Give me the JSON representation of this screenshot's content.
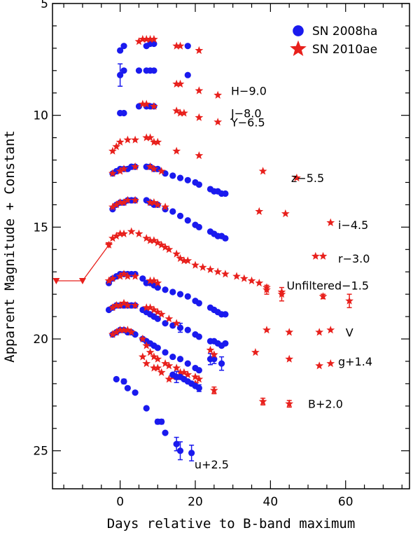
{
  "chart_data": {
    "type": "scatter",
    "title": "",
    "xlabel": "Days relative to B-band maximum",
    "ylabel": "Apparent Magnitude + Constant",
    "xlim": [
      -18,
      77
    ],
    "ylim": [
      26.7,
      5
    ],
    "y_inverted": true,
    "x_ticks": [
      0,
      20,
      40,
      60
    ],
    "y_ticks": [
      5,
      10,
      15,
      20,
      25
    ],
    "colors": {
      "sn2008ha": "#1a1aee",
      "sn2010ae": "#e8201c"
    },
    "legend": {
      "position": "top-right",
      "entries": [
        {
          "key": "sn2008ha",
          "label": "SN 2008ha",
          "marker": "circle"
        },
        {
          "key": "sn2010ae",
          "label": "SN 2010ae",
          "marker": "star"
        }
      ]
    },
    "band_labels": [
      {
        "text": "H−9.0",
        "x": 29.5,
        "y": 8.9
      },
      {
        "text": "J−8.0",
        "x": 29.5,
        "y": 9.9
      },
      {
        "text": "Y−6.5",
        "x": 29.5,
        "y": 10.3
      },
      {
        "text": "z−5.5",
        "x": 45.5,
        "y": 12.8
      },
      {
        "text": "i−4.5",
        "x": 58.0,
        "y": 14.9
      },
      {
        "text": "r−3.0",
        "x": 58.0,
        "y": 16.4
      },
      {
        "text": "Unfiltered−1.5",
        "x": 44.3,
        "y": 17.6
      },
      {
        "text": "V",
        "x": 60.0,
        "y": 19.7
      },
      {
        "text": "g+1.4",
        "x": 58.0,
        "y": 21.0
      },
      {
        "text": "B+2.0",
        "x": 50.0,
        "y": 22.9
      },
      {
        "text": "u+2.5",
        "x": 19.8,
        "y": 25.6
      }
    ],
    "series": [
      {
        "name": "SN 2008ha H-9.0",
        "marker": "circle",
        "color": "sn2008ha",
        "x": [
          0,
          1,
          7,
          8,
          9,
          18
        ],
        "y": [
          7.1,
          6.9,
          6.9,
          6.8,
          6.8,
          6.9
        ]
      },
      {
        "name": "SN 2010ae H-9.0",
        "marker": "star",
        "color": "sn2010ae",
        "x": [
          5,
          6,
          7,
          8,
          9,
          15,
          16,
          21
        ],
        "y": [
          6.7,
          6.6,
          6.6,
          6.6,
          6.6,
          6.9,
          6.9,
          7.1
        ]
      },
      {
        "name": "SN 2008ha J-8.0",
        "marker": "circle",
        "color": "sn2008ha",
        "x": [
          0,
          1,
          5,
          7,
          8,
          9,
          18
        ],
        "y": [
          8.2,
          8.0,
          8.0,
          8.0,
          8.0,
          8.0,
          8.2
        ],
        "err": [
          0.5,
          0,
          0,
          0,
          0,
          0,
          0
        ]
      },
      {
        "name": "SN 2010ae J-8.0",
        "marker": "star",
        "color": "sn2010ae",
        "x": [
          15,
          16,
          21,
          26
        ],
        "y": [
          8.6,
          8.6,
          8.9,
          9.1
        ]
      },
      {
        "name": "SN 2008ha Y-6.5",
        "marker": "circle",
        "color": "sn2008ha",
        "x": [
          0,
          1,
          5,
          7,
          8,
          9
        ],
        "y": [
          9.9,
          9.9,
          9.6,
          9.6,
          9.6,
          9.6
        ]
      },
      {
        "name": "SN 2010ae Y-6.5",
        "marker": "star",
        "color": "sn2010ae",
        "x": [
          6,
          7,
          9,
          15,
          16,
          17,
          21,
          26
        ],
        "y": [
          9.5,
          9.5,
          9.6,
          9.8,
          9.9,
          9.9,
          10.1,
          10.3
        ]
      },
      {
        "name": "SN 2010ae z-5.5",
        "marker": "star",
        "color": "sn2010ae",
        "x": [
          -2,
          -1,
          0,
          2,
          4,
          7,
          8,
          9,
          10,
          15,
          21,
          38,
          47
        ],
        "y": [
          11.6,
          11.4,
          11.2,
          11.1,
          11.1,
          11.0,
          11.0,
          11.2,
          11.2,
          11.6,
          11.8,
          12.5,
          12.8
        ]
      },
      {
        "name": "SN 2008ha z-5.5",
        "marker": "circle",
        "color": "sn2008ha",
        "x": [
          -2,
          -1,
          0,
          1,
          2,
          3,
          4,
          7,
          8,
          9,
          10,
          12,
          14,
          16,
          18,
          20,
          21,
          24,
          25,
          26,
          27,
          28
        ],
        "y": [
          12.6,
          12.5,
          12.4,
          12.4,
          12.4,
          12.3,
          12.3,
          12.3,
          12.3,
          12.4,
          12.4,
          12.6,
          12.7,
          12.8,
          12.9,
          13.0,
          13.1,
          13.3,
          13.4,
          13.4,
          13.5,
          13.5
        ]
      },
      {
        "name": "SN 2010ae z-5.5 (B)",
        "marker": "star",
        "color": "sn2010ae",
        "x": [
          -2,
          0,
          1,
          4,
          8,
          9,
          11
        ],
        "y": [
          12.6,
          12.5,
          12.4,
          12.3,
          12.3,
          12.4,
          12.5
        ]
      },
      {
        "name": "SN 2008ha i-4.5",
        "marker": "circle",
        "color": "sn2008ha",
        "x": [
          -2,
          -1,
          0,
          1,
          2,
          3,
          4,
          7,
          8,
          9,
          10,
          12,
          14,
          16,
          18,
          20,
          21,
          24,
          25,
          26,
          27,
          28
        ],
        "y": [
          14.2,
          14.0,
          13.9,
          13.9,
          13.8,
          13.8,
          13.8,
          13.8,
          13.9,
          14.0,
          14.0,
          14.2,
          14.3,
          14.5,
          14.7,
          14.9,
          15.0,
          15.2,
          15.3,
          15.4,
          15.4,
          15.5
        ]
      },
      {
        "name": "SN 2010ae i-4.5",
        "marker": "star",
        "color": "sn2010ae",
        "x": [
          -2,
          -1,
          0,
          1,
          2,
          4,
          8,
          9,
          10,
          12,
          37,
          44,
          56
        ],
        "y": [
          14.1,
          14.0,
          13.9,
          13.9,
          13.8,
          13.8,
          13.9,
          13.9,
          14.0,
          14.1,
          14.3,
          14.4,
          14.8
        ]
      },
      {
        "name": "SN 2010ae r-3.0",
        "marker": "star",
        "color": "sn2010ae",
        "x": [
          -3,
          -2,
          -1,
          0,
          1,
          3,
          5,
          7,
          8,
          9,
          10,
          11,
          12,
          13,
          15,
          16,
          17,
          18,
          20,
          22,
          24,
          26,
          28,
          31,
          33,
          35,
          37,
          39,
          43,
          52,
          54
        ],
        "y": [
          15.8,
          15.5,
          15.4,
          15.3,
          15.3,
          15.2,
          15.3,
          15.5,
          15.6,
          15.6,
          15.7,
          15.8,
          15.9,
          16.0,
          16.2,
          16.4,
          16.5,
          16.5,
          16.7,
          16.8,
          16.9,
          17.0,
          17.1,
          17.2,
          17.3,
          17.4,
          17.5,
          17.7,
          17.9,
          16.3,
          16.3
        ]
      },
      {
        "name": "SN 2008ha Unfiltered-1.5",
        "marker": "circle",
        "color": "sn2008ha",
        "x": [
          -3,
          -2,
          -1,
          0,
          1,
          2,
          3,
          4,
          6,
          7,
          8,
          9,
          10,
          12,
          14,
          16,
          18,
          20,
          21,
          24,
          25,
          26,
          27,
          28
        ],
        "y": [
          17.5,
          17.3,
          17.2,
          17.1,
          17.1,
          17.1,
          17.1,
          17.1,
          17.3,
          17.5,
          17.5,
          17.6,
          17.7,
          17.8,
          17.9,
          18.0,
          18.1,
          18.3,
          18.4,
          18.6,
          18.7,
          18.8,
          18.9,
          18.9
        ]
      },
      {
        "name": "SN 2010ae Unfiltered-1.5",
        "marker": "star",
        "color": "sn2010ae",
        "x": [
          -3,
          -2,
          0,
          1,
          2,
          4,
          8,
          9,
          10,
          39,
          43,
          54,
          61
        ],
        "y": [
          17.4,
          17.3,
          17.2,
          17.1,
          17.2,
          17.2,
          17.4,
          17.4,
          17.5,
          17.8,
          18.0,
          18.1,
          18.3
        ],
        "err": [
          0,
          0,
          0,
          0,
          0,
          0,
          0,
          0,
          0,
          0.2,
          0.3,
          0.1,
          0.3
        ]
      },
      {
        "name": "SN 2010ae upper limits",
        "marker": "triangle-down",
        "color": "sn2010ae",
        "connected": true,
        "x": [
          -17,
          -10,
          -3
        ],
        "y": [
          17.4,
          17.4,
          15.8
        ]
      },
      {
        "name": "SN 2008ha V",
        "marker": "circle",
        "color": "sn2008ha",
        "x": [
          -3,
          -2,
          -1,
          0,
          1,
          2,
          3,
          4,
          6,
          7,
          8,
          9,
          10,
          12,
          14,
          16,
          18,
          20,
          21,
          24,
          25,
          26,
          27,
          28
        ],
        "y": [
          18.7,
          18.6,
          18.5,
          18.5,
          18.5,
          18.5,
          18.5,
          18.5,
          18.7,
          18.8,
          18.9,
          19.0,
          19.1,
          19.3,
          19.4,
          19.5,
          19.6,
          19.8,
          19.9,
          20.1,
          20.1,
          20.2,
          20.3,
          20.2
        ],
        "err": [
          0,
          0,
          0,
          0,
          0,
          0,
          0,
          0,
          0,
          0,
          0,
          0,
          0,
          0,
          0,
          0.2,
          0,
          0,
          0,
          0,
          0,
          0,
          0,
          0
        ]
      },
      {
        "name": "SN 2010ae V",
        "marker": "star",
        "color": "sn2010ae",
        "x": [
          -2,
          -1,
          0,
          1,
          2,
          4,
          7,
          8,
          9,
          10,
          11,
          13,
          15,
          39,
          45,
          53,
          56
        ],
        "y": [
          18.6,
          18.5,
          18.5,
          18.4,
          18.5,
          18.5,
          18.6,
          18.6,
          18.7,
          18.8,
          18.9,
          19.1,
          19.3,
          19.6,
          19.7,
          19.7,
          19.6
        ]
      },
      {
        "name": "SN 2008ha g+1.4",
        "marker": "circle",
        "color": "sn2008ha",
        "x": [
          -2,
          -1,
          0,
          1,
          2,
          3,
          4,
          6,
          7,
          8,
          9,
          10,
          12,
          14,
          16,
          18,
          20,
          21,
          24,
          25,
          27
        ],
        "y": [
          19.8,
          19.7,
          19.6,
          19.6,
          19.7,
          19.7,
          19.8,
          20.0,
          20.1,
          20.2,
          20.3,
          20.4,
          20.6,
          20.8,
          20.9,
          21.1,
          21.3,
          21.4,
          20.9,
          20.9,
          21.1
        ],
        "err": [
          0,
          0,
          0,
          0,
          0,
          0,
          0,
          0,
          0,
          0,
          0,
          0,
          0,
          0,
          0,
          0,
          0,
          0,
          0.25,
          0.2,
          0.3
        ]
      },
      {
        "name": "SN 2010ae g+1.4",
        "marker": "star",
        "color": "sn2010ae",
        "x": [
          -2,
          -1,
          0,
          1,
          2,
          3,
          6,
          7,
          8,
          9,
          10,
          12,
          13,
          15,
          16,
          17,
          18,
          20,
          21,
          24,
          25,
          36,
          45,
          53,
          56
        ],
        "y": [
          19.8,
          19.7,
          19.6,
          19.6,
          19.6,
          19.7,
          20.0,
          20.3,
          20.6,
          20.8,
          20.9,
          21.1,
          21.2,
          21.3,
          21.5,
          21.5,
          21.6,
          21.7,
          21.8,
          20.5,
          20.7,
          20.6,
          20.9,
          21.2,
          21.1
        ]
      },
      {
        "name": "SN 2010ae B+2.0",
        "marker": "star",
        "color": "sn2010ae",
        "x": [
          6,
          7,
          9,
          10,
          11,
          13,
          14,
          16,
          20,
          25,
          38,
          45
        ],
        "y": [
          20.8,
          21.1,
          21.3,
          21.3,
          21.5,
          21.8,
          21.7,
          21.7,
          22.0,
          22.3,
          22.8,
          22.9
        ],
        "err": [
          0,
          0,
          0,
          0,
          0,
          0,
          0,
          0,
          0,
          0.15,
          0.15,
          0.15
        ]
      },
      {
        "name": "SN 2008ha B+2.0",
        "marker": "circle",
        "color": "sn2008ha",
        "x": [
          14,
          15,
          16,
          17,
          18,
          19,
          20,
          21
        ],
        "y": [
          21.6,
          21.7,
          21.7,
          21.8,
          21.9,
          22.0,
          22.1,
          22.2
        ],
        "err": [
          0,
          0.25,
          0,
          0,
          0,
          0,
          0,
          0.15
        ]
      },
      {
        "name": "SN 2008ha u+2.5",
        "marker": "circle",
        "color": "sn2008ha",
        "x": [
          -1,
          1,
          2,
          4,
          7,
          10,
          11,
          12,
          15,
          16,
          19
        ],
        "y": [
          21.8,
          21.9,
          22.2,
          22.4,
          23.1,
          23.7,
          23.7,
          24.2,
          24.7,
          25.0,
          25.1
        ],
        "err": [
          0,
          0.1,
          0,
          0,
          0,
          0.1,
          0.1,
          0,
          0.3,
          0.4,
          0.35
        ]
      }
    ]
  }
}
